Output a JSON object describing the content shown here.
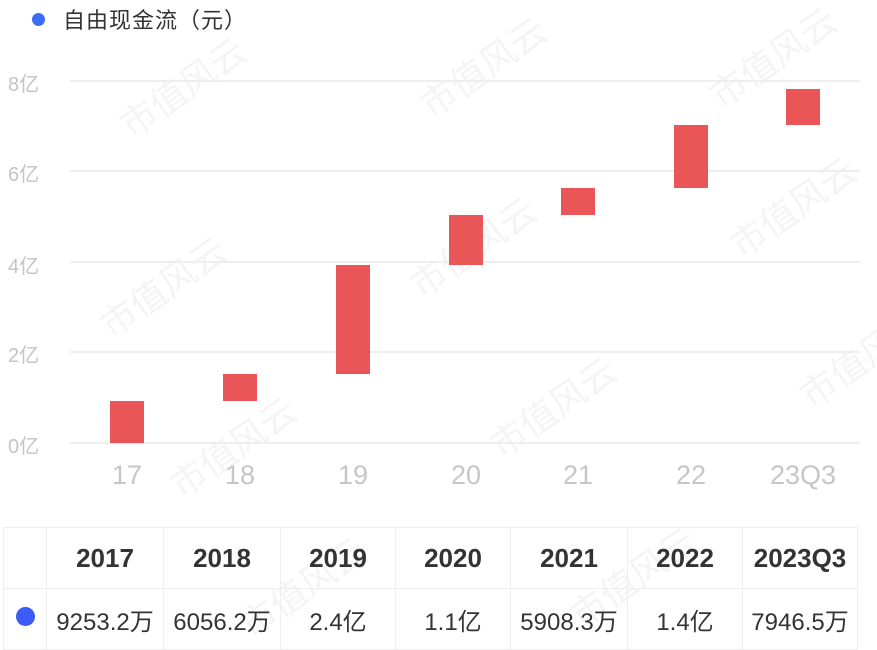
{
  "legend": {
    "label": "自由现金流（元）",
    "color": "#3b6cf6"
  },
  "watermark": "市值风云",
  "y_axis": {
    "ticks": [
      "8亿",
      "6亿",
      "4亿",
      "2亿",
      "0亿"
    ]
  },
  "x_axis": {
    "ticks": [
      "17",
      "18",
      "19",
      "20",
      "21",
      "22",
      "23Q3"
    ]
  },
  "table": {
    "headers": [
      "2017",
      "2018",
      "2019",
      "2020",
      "2021",
      "2022",
      "2023Q3"
    ],
    "values": [
      "9253.2万",
      "6056.2万",
      "2.4亿",
      "1.1亿",
      "5908.3万",
      "1.4亿",
      "7946.5万"
    ]
  },
  "chart_data": {
    "type": "bar",
    "subtype": "waterfall",
    "title": "自由现金流（元）",
    "categories": [
      "17",
      "18",
      "19",
      "20",
      "21",
      "22",
      "23Q3"
    ],
    "values": [
      0.92532,
      0.60562,
      2.4,
      1.1,
      0.59083,
      1.4,
      0.79465
    ],
    "cumulative_ranges": [
      [
        0,
        0.93
      ],
      [
        0.93,
        1.53
      ],
      [
        1.53,
        3.93
      ],
      [
        3.93,
        5.04
      ],
      [
        5.04,
        5.63
      ],
      [
        5.63,
        7.03
      ],
      [
        7.03,
        7.83
      ]
    ],
    "unit": "亿",
    "ylim": [
      0,
      8
    ],
    "yticks": [
      0,
      2,
      4,
      6,
      8
    ],
    "bar_color": "#ea5558",
    "grid": true,
    "legend_position": "top-left"
  }
}
